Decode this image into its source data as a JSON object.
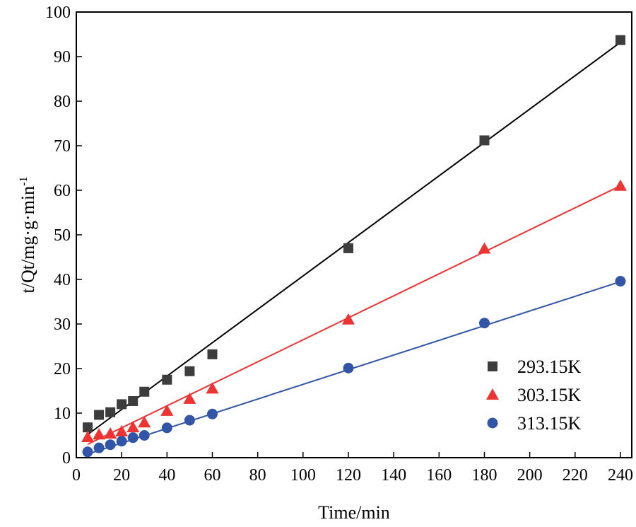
{
  "chart_data": {
    "type": "scatter",
    "title": "",
    "xlabel": "Time/min",
    "ylabel_main": "t/Qt/mg·g·min",
    "ylabel_sup": "-1",
    "xlim": [
      0,
      245
    ],
    "ylim": [
      0,
      100
    ],
    "xticks": [
      0,
      20,
      40,
      60,
      80,
      100,
      120,
      140,
      160,
      180,
      200,
      220,
      240
    ],
    "yticks": [
      0,
      10,
      20,
      30,
      40,
      50,
      60,
      70,
      80,
      90,
      100
    ],
    "grid": false,
    "legend_position": "bottom-right",
    "series": [
      {
        "name": "293.15K",
        "marker": "square",
        "color": "#3d3d3d",
        "line_color": "#000000",
        "x": [
          5,
          10,
          15,
          20,
          25,
          30,
          40,
          50,
          60,
          120,
          180,
          240
        ],
        "y": [
          6.8,
          9.6,
          10.2,
          12.0,
          12.7,
          14.8,
          17.5,
          19.4,
          23.2,
          47.0,
          71.2,
          93.7
        ],
        "fit": [
          [
            5,
            5.2
          ],
          [
            240,
            93.2
          ]
        ]
      },
      {
        "name": "303.15K",
        "marker": "triangle",
        "color": "#ee3333",
        "line_color": "#ee3333",
        "x": [
          5,
          10,
          15,
          20,
          25,
          30,
          40,
          50,
          60,
          120,
          180,
          240
        ],
        "y": [
          4.6,
          5.2,
          5.4,
          5.9,
          6.8,
          7.9,
          10.5,
          13.2,
          15.5,
          31.0,
          46.9,
          61.0
        ],
        "fit": [
          [
            5,
            3.0
          ],
          [
            240,
            61.0
          ]
        ]
      },
      {
        "name": "313.15K",
        "marker": "circle",
        "color": "#3355a8",
        "line_color": "#3355a8",
        "x": [
          5,
          10,
          15,
          20,
          25,
          30,
          40,
          50,
          60,
          120,
          180,
          240
        ],
        "y": [
          1.3,
          2.2,
          2.9,
          3.7,
          4.5,
          5.0,
          6.7,
          8.4,
          9.8,
          20.1,
          30.2,
          39.6
        ],
        "fit": [
          [
            5,
            0.8
          ],
          [
            240,
            39.5
          ]
        ]
      }
    ]
  }
}
